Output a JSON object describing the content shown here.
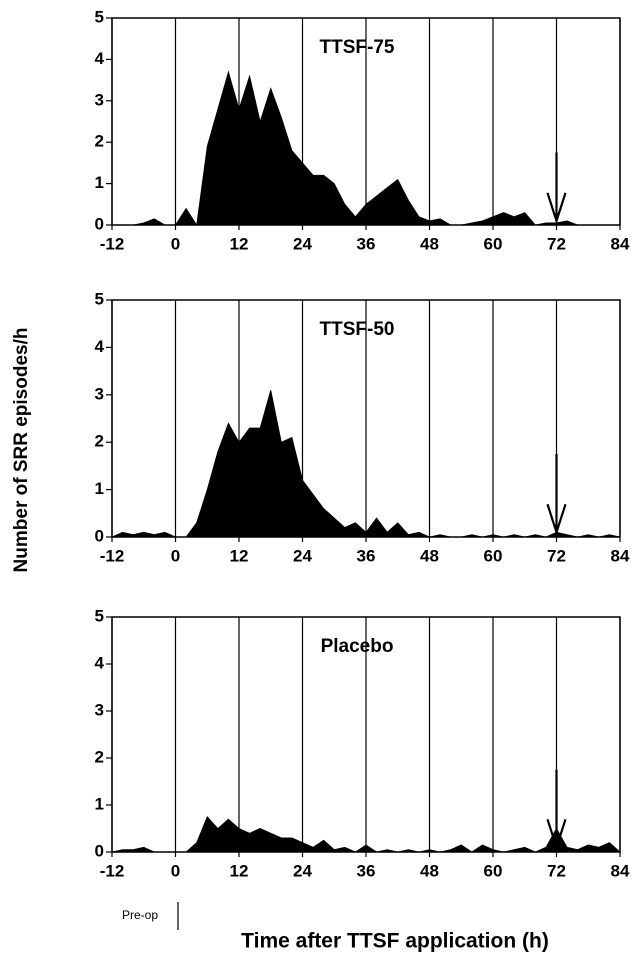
{
  "figure": {
    "ylabel": "Number of SRR episodes/h",
    "xlabel": "Time after TTSF application (h)",
    "annotation": "Pre-op"
  },
  "chart_data": [
    {
      "type": "area",
      "title": "TTSF-75",
      "color": "#000000",
      "xlim": [
        -12,
        84
      ],
      "ylim": [
        0,
        5
      ],
      "xticks": [
        -12,
        0,
        12,
        24,
        36,
        48,
        60,
        72,
        84
      ],
      "yticks": [
        0,
        1,
        2,
        3,
        4,
        5
      ],
      "grid": true,
      "arrow_x": 72,
      "x": [
        -12,
        -10,
        -8,
        -6,
        -4,
        -2,
        0,
        2,
        4,
        6,
        8,
        10,
        12,
        14,
        16,
        18,
        20,
        22,
        24,
        26,
        28,
        30,
        32,
        34,
        36,
        38,
        40,
        42,
        44,
        46,
        48,
        50,
        52,
        54,
        56,
        58,
        60,
        62,
        64,
        66,
        68,
        70,
        72,
        74,
        76,
        78,
        80,
        82,
        84
      ],
      "values": [
        0,
        0,
        0,
        0.05,
        0.15,
        0,
        0,
        0.4,
        0,
        1.9,
        2.8,
        3.7,
        2.8,
        3.6,
        2.5,
        3.3,
        2.6,
        1.8,
        1.5,
        1.2,
        1.2,
        1.0,
        0.5,
        0.2,
        0.5,
        0.7,
        0.9,
        1.1,
        0.6,
        0.2,
        0.1,
        0.15,
        0,
        0,
        0.05,
        0.1,
        0.2,
        0.3,
        0.2,
        0.3,
        0,
        0.05,
        0.05,
        0.1,
        0,
        0,
        0,
        0,
        0
      ]
    },
    {
      "type": "area",
      "title": "TTSF-50",
      "color": "#000000",
      "xlim": [
        -12,
        84
      ],
      "ylim": [
        0,
        5
      ],
      "xticks": [
        -12,
        0,
        12,
        24,
        36,
        48,
        60,
        72,
        84
      ],
      "yticks": [
        0,
        1,
        2,
        3,
        4,
        5
      ],
      "grid": true,
      "arrow_x": 72,
      "x": [
        -12,
        -10,
        -8,
        -6,
        -4,
        -2,
        0,
        2,
        4,
        6,
        8,
        10,
        12,
        14,
        16,
        18,
        20,
        22,
        24,
        26,
        28,
        30,
        32,
        34,
        36,
        38,
        40,
        42,
        44,
        46,
        48,
        50,
        52,
        54,
        56,
        58,
        60,
        62,
        64,
        66,
        68,
        70,
        72,
        74,
        76,
        78,
        80,
        82,
        84
      ],
      "values": [
        0,
        0.1,
        0.05,
        0.1,
        0.05,
        0.1,
        0,
        0,
        0.3,
        1.0,
        1.8,
        2.4,
        2.0,
        2.3,
        2.3,
        3.1,
        2.0,
        2.1,
        1.2,
        0.9,
        0.6,
        0.4,
        0.2,
        0.3,
        0.1,
        0.4,
        0.1,
        0.3,
        0.05,
        0.1,
        0,
        0.05,
        0,
        0,
        0.05,
        0,
        0.05,
        0,
        0.05,
        0,
        0.05,
        0,
        0.1,
        0.05,
        0,
        0.05,
        0,
        0.05,
        0
      ]
    },
    {
      "type": "area",
      "title": "Placebo",
      "color": "#000000",
      "xlim": [
        -12,
        84
      ],
      "ylim": [
        0,
        5
      ],
      "xticks": [
        -12,
        0,
        12,
        24,
        36,
        48,
        60,
        72,
        84
      ],
      "yticks": [
        0,
        1,
        2,
        3,
        4,
        5
      ],
      "grid": true,
      "arrow_x": 72,
      "x": [
        -12,
        -10,
        -8,
        -6,
        -4,
        -2,
        0,
        2,
        4,
        6,
        8,
        10,
        12,
        14,
        16,
        18,
        20,
        22,
        24,
        26,
        28,
        30,
        32,
        34,
        36,
        38,
        40,
        42,
        44,
        46,
        48,
        50,
        52,
        54,
        56,
        58,
        60,
        62,
        64,
        66,
        68,
        70,
        72,
        74,
        76,
        78,
        80,
        82,
        84
      ],
      "values": [
        0,
        0.05,
        0.05,
        0.1,
        0,
        0,
        0,
        0,
        0.2,
        0.75,
        0.5,
        0.7,
        0.5,
        0.4,
        0.5,
        0.4,
        0.3,
        0.3,
        0.2,
        0.1,
        0.25,
        0.05,
        0.1,
        0,
        0.15,
        0,
        0.05,
        0,
        0.05,
        0,
        0.05,
        0,
        0.05,
        0.15,
        0,
        0.15,
        0.05,
        0,
        0.05,
        0.1,
        0,
        0.1,
        0.5,
        0.1,
        0.05,
        0.15,
        0.1,
        0.2,
        0
      ]
    }
  ]
}
